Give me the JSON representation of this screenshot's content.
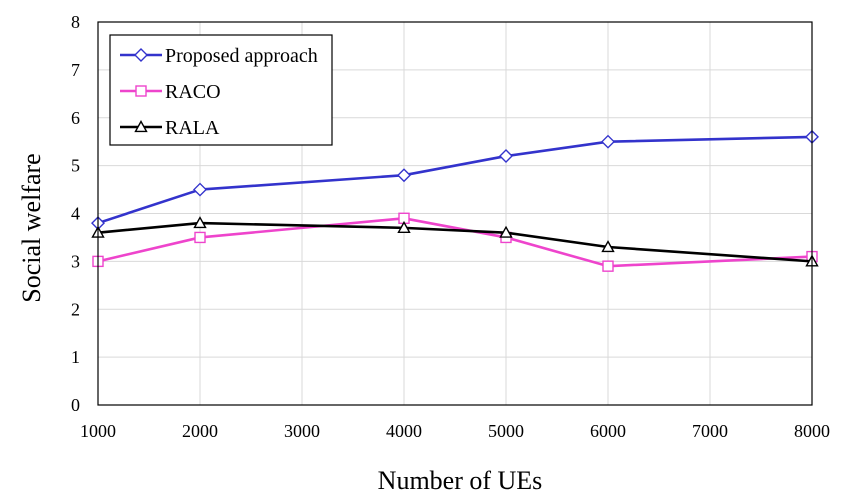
{
  "chart_data": {
    "type": "line",
    "title": "",
    "xlabel": "Number of UEs",
    "ylabel": "Social welfare",
    "xlim": [
      1000,
      8000
    ],
    "ylim": [
      0,
      8
    ],
    "xticks": [
      "1000",
      "2000",
      "3000",
      "4000",
      "5000",
      "6000",
      "7000",
      "8000"
    ],
    "yticks": [
      "0",
      "1",
      "2",
      "3",
      "4",
      "5",
      "6",
      "7",
      "8"
    ],
    "grid": true,
    "legend_position": "top-left",
    "series": [
      {
        "name": "Proposed approach",
        "color": "#3333cc",
        "marker": "diamond",
        "x": [
          1000,
          2000,
          4000,
          5000,
          6000,
          8000
        ],
        "values": [
          3.8,
          4.5,
          4.8,
          5.2,
          5.5,
          5.6
        ]
      },
      {
        "name": "RACO",
        "color": "#ee44cc",
        "marker": "square",
        "x": [
          1000,
          2000,
          4000,
          5000,
          6000,
          8000
        ],
        "values": [
          3.0,
          3.5,
          3.9,
          3.5,
          2.9,
          3.1
        ]
      },
      {
        "name": "RALA",
        "color": "#000000",
        "marker": "triangle",
        "x": [
          1000,
          2000,
          4000,
          5000,
          6000,
          8000
        ],
        "values": [
          3.6,
          3.8,
          3.7,
          3.6,
          3.3,
          3.0
        ]
      }
    ]
  }
}
